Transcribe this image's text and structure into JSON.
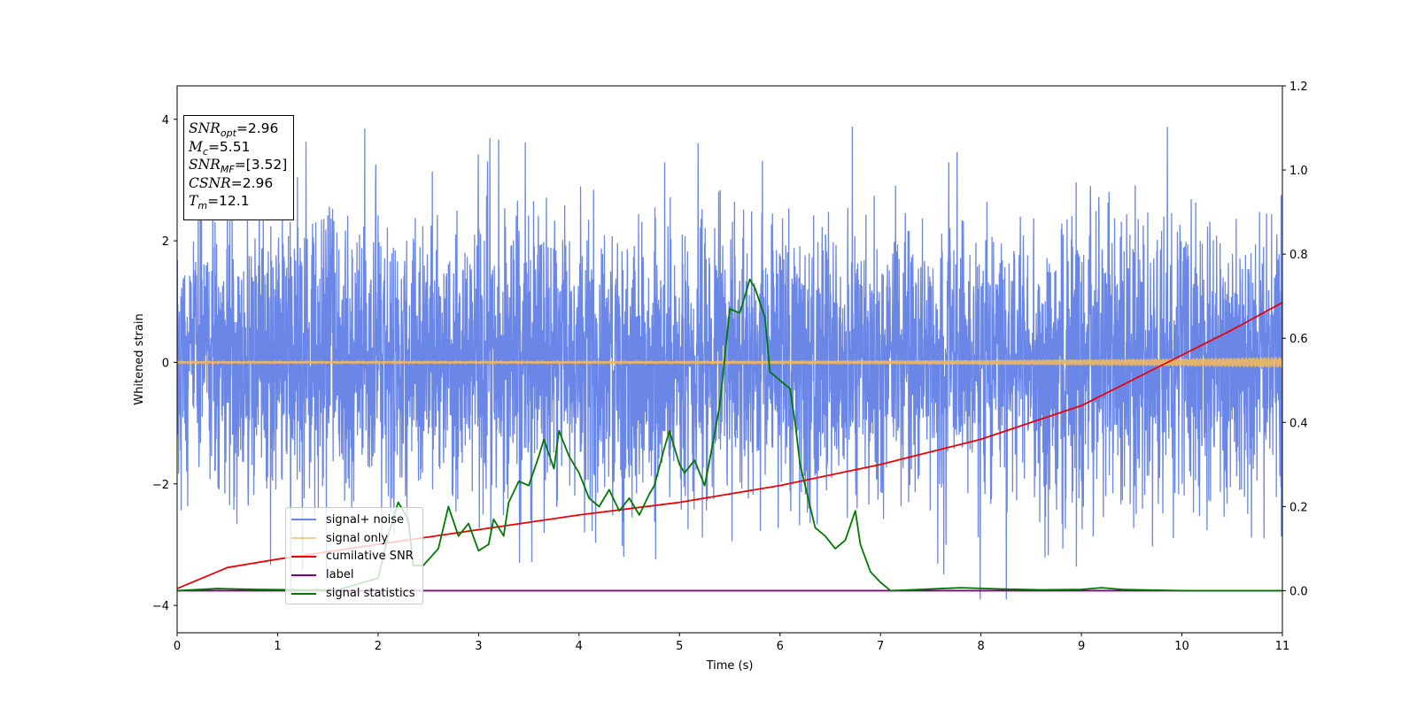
{
  "chart_data": {
    "type": "line",
    "xlabel": "Time (s)",
    "ylabel": "Whitened strain",
    "xlim": [
      0,
      11
    ],
    "ylim_left": [
      -4.45,
      4.55
    ],
    "ylim_right": [
      -0.1,
      1.2
    ],
    "x_ticks": [
      "0",
      "1",
      "2",
      "3",
      "4",
      "5",
      "6",
      "7",
      "8",
      "9",
      "10",
      "11"
    ],
    "y_left_ticks": [
      "4",
      "2",
      "0",
      "−2",
      "−4"
    ],
    "y_right_ticks": [
      "1.2",
      "1.0",
      "0.8",
      "0.6",
      "0.4",
      "0.2",
      "0.0"
    ],
    "legend_location": "lower-left",
    "series": [
      {
        "name": "signal+ noise",
        "axis": "left",
        "color": "#6a86e6",
        "description_shape": "gaussian noise, roughly spanning -3.5 to 4.2",
        "amplitude_range": [
          -3.9,
          4.2
        ]
      },
      {
        "name": "signal only",
        "axis": "left",
        "color": "#f0b860",
        "description_shape": "chirp growing in amplitude near the end",
        "amplitude_start": 0.02,
        "amplitude_end": 0.09
      },
      {
        "name": "cumilative SNR",
        "axis": "right",
        "color": "#ee0000",
        "x": [
          0,
          0.5,
          1,
          2,
          3,
          4,
          5,
          6,
          7,
          8,
          9,
          10,
          10.5,
          11
        ],
        "y": [
          0.005,
          0.055,
          0.075,
          0.11,
          0.145,
          0.18,
          0.21,
          0.25,
          0.3,
          0.36,
          0.44,
          0.56,
          0.62,
          0.685
        ]
      },
      {
        "name": "label",
        "axis": "right",
        "color": "#800080",
        "x": [
          0,
          11
        ],
        "y": [
          0,
          0
        ]
      },
      {
        "name": "signal statistics",
        "axis": "right",
        "color": "#007800",
        "x": [
          0,
          0.4,
          0.8,
          1.2,
          1.6,
          2.0,
          2.1,
          2.2,
          2.3,
          2.35,
          2.45,
          2.6,
          2.7,
          2.8,
          2.9,
          3.0,
          3.1,
          3.15,
          3.25,
          3.3,
          3.4,
          3.5,
          3.6,
          3.65,
          3.75,
          3.8,
          3.9,
          4.0,
          4.1,
          4.2,
          4.3,
          4.4,
          4.5,
          4.6,
          4.7,
          4.75,
          4.85,
          4.9,
          5.0,
          5.05,
          5.15,
          5.25,
          5.3,
          5.4,
          5.5,
          5.6,
          5.7,
          5.75,
          5.85,
          5.9,
          6.0,
          6.1,
          6.15,
          6.2,
          6.3,
          6.35,
          6.45,
          6.55,
          6.65,
          6.75,
          6.8,
          6.9,
          7.0,
          7.1,
          7.3,
          7.6,
          7.8,
          8.2,
          8.6,
          9.0,
          9.2,
          9.4,
          9.6,
          10.0,
          10.5,
          11.0
        ],
        "y": [
          0.0,
          0.005,
          0.003,
          0.002,
          0.002,
          0.03,
          0.13,
          0.21,
          0.17,
          0.06,
          0.06,
          0.1,
          0.2,
          0.13,
          0.16,
          0.095,
          0.11,
          0.17,
          0.13,
          0.21,
          0.26,
          0.25,
          0.32,
          0.36,
          0.29,
          0.38,
          0.32,
          0.28,
          0.22,
          0.2,
          0.24,
          0.19,
          0.22,
          0.18,
          0.23,
          0.25,
          0.34,
          0.38,
          0.3,
          0.28,
          0.31,
          0.25,
          0.31,
          0.44,
          0.67,
          0.66,
          0.74,
          0.72,
          0.65,
          0.52,
          0.5,
          0.48,
          0.4,
          0.3,
          0.2,
          0.15,
          0.13,
          0.1,
          0.12,
          0.19,
          0.11,
          0.045,
          0.02,
          0.0,
          0.002,
          0.005,
          0.007,
          0.004,
          0.002,
          0.003,
          0.007,
          0.003,
          0.002,
          0.0,
          0.0,
          0.0
        ]
      }
    ],
    "info_box": [
      {
        "symbol": "SNR",
        "sub": "opt",
        "value": "=2.96"
      },
      {
        "symbol": "M",
        "sub": "c",
        "value": "=5.51"
      },
      {
        "symbol": "SNR",
        "sub": "MF",
        "value": "=[3.52]"
      },
      {
        "symbol": "CSNR",
        "sub": "",
        "value": "=2.96"
      },
      {
        "symbol": "T",
        "sub": "m",
        "value": "=12.1"
      }
    ]
  }
}
